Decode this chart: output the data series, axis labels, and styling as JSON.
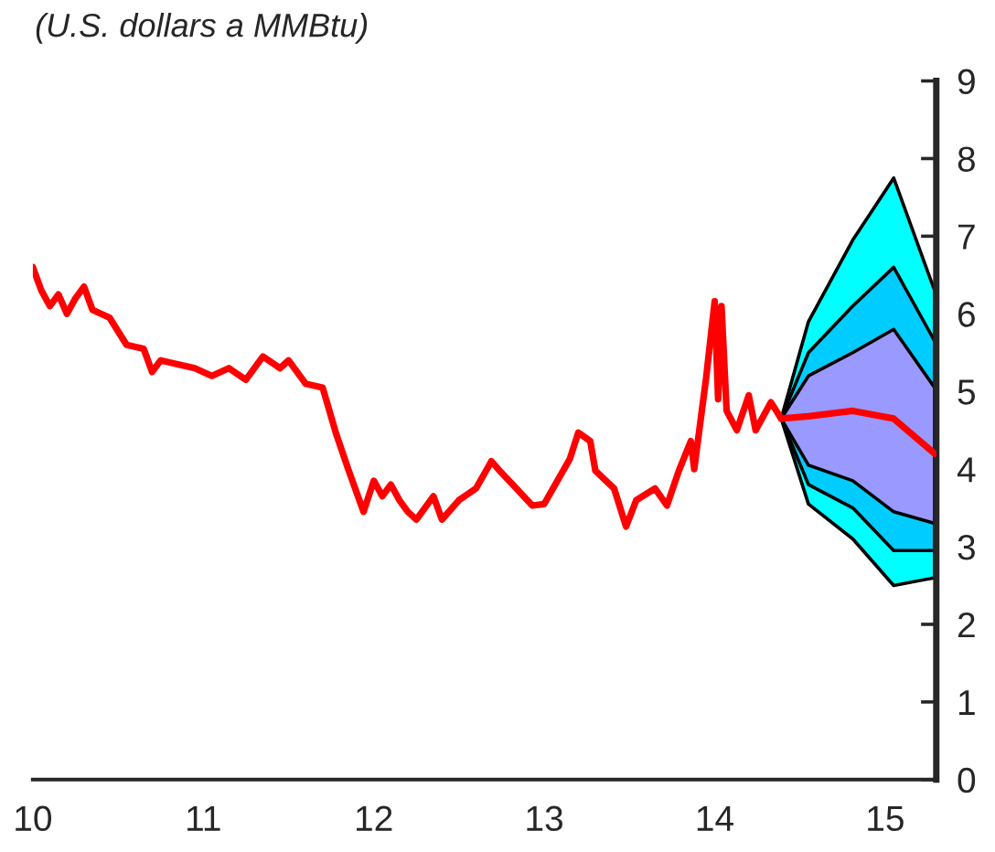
{
  "chart_data": {
    "type": "line",
    "title": "(U.S. dollars a MMBtu)",
    "xlim": [
      10,
      15.3
    ],
    "xticks": [
      10,
      11,
      12,
      13,
      14,
      15
    ],
    "ylim": [
      0,
      9
    ],
    "yticks": [
      0,
      1,
      2,
      3,
      4,
      5,
      6,
      7,
      8,
      9
    ],
    "grid": false,
    "series": [
      {
        "type": "line",
        "color": "#00ffff",
        "x": [
          14.39,
          14.55,
          14.81,
          15.05,
          15.29
        ],
        "values": [
          null,
          null,
          null,
          null,
          null
        ],
        "lower": [
          4.65,
          3.55,
          3.1,
          2.5,
          2.6
        ],
        "upper": [
          4.65,
          5.9,
          6.95,
          7.75,
          6.3
        ]
      },
      {
        "type": "line",
        "color": "#00ccff",
        "x": [
          14.39,
          14.55,
          14.81,
          15.05,
          15.29
        ],
        "values": [
          null,
          null,
          null,
          null,
          null
        ],
        "lower": [
          4.65,
          3.8,
          3.5,
          2.95,
          2.95
        ],
        "upper": [
          4.65,
          5.5,
          6.1,
          6.6,
          5.65
        ]
      },
      {
        "type": "line",
        "color": "#9999ff",
        "x": [
          14.39,
          14.55,
          14.81,
          15.05,
          15.29
        ],
        "values": [
          null,
          null,
          null,
          null,
          null
        ],
        "lower": [
          4.65,
          4.05,
          3.85,
          3.45,
          3.3
        ],
        "upper": [
          4.65,
          5.2,
          5.5,
          5.8,
          5.05
        ]
      },
      {
        "type": "line",
        "color": "#ff0000",
        "x": [
          14.39,
          14.55,
          14.81,
          15.05,
          15.29
        ],
        "values": [
          4.65,
          4.68,
          4.75,
          4.65,
          4.2
        ]
      },
      {
        "color": "#ff0000",
        "x": [
          10.0,
          10.05,
          10.1,
          10.15,
          10.2,
          10.25,
          10.3,
          10.35,
          10.45,
          10.55,
          10.65,
          10.7,
          10.75,
          10.85,
          10.95,
          11.05,
          11.15,
          11.25,
          11.35,
          11.45,
          11.5,
          11.6,
          11.7,
          11.78,
          11.85,
          11.94,
          12.0,
          12.05,
          12.1,
          12.15,
          12.2,
          12.25,
          12.35,
          12.4,
          12.5,
          12.6,
          12.69,
          12.75,
          12.82,
          12.93,
          13.0,
          13.15,
          13.2,
          13.27,
          13.3,
          13.41,
          13.48,
          13.54,
          13.65,
          13.72,
          13.79,
          13.86,
          13.88,
          13.95,
          14.0,
          14.02,
          14.04,
          14.07,
          14.13,
          14.2,
          14.24,
          14.33,
          14.39
        ],
        "values": [
          6.6,
          6.3,
          6.1,
          6.25,
          6.0,
          6.2,
          6.35,
          6.05,
          5.95,
          5.6,
          5.55,
          5.25,
          5.4,
          5.35,
          5.3,
          5.2,
          5.3,
          5.15,
          5.45,
          5.3,
          5.4,
          5.1,
          5.05,
          4.45,
          4.0,
          3.45,
          3.85,
          3.65,
          3.8,
          3.6,
          3.45,
          3.35,
          3.65,
          3.35,
          3.6,
          3.75,
          4.1,
          3.95,
          3.79,
          3.53,
          3.55,
          4.13,
          4.47,
          4.36,
          3.98,
          3.75,
          3.26,
          3.6,
          3.75,
          3.53,
          3.98,
          4.36,
          4.0,
          5.18,
          6.16,
          4.9,
          6.1,
          4.75,
          4.5,
          4.95,
          4.5,
          4.86,
          4.65
        ]
      }
    ]
  }
}
